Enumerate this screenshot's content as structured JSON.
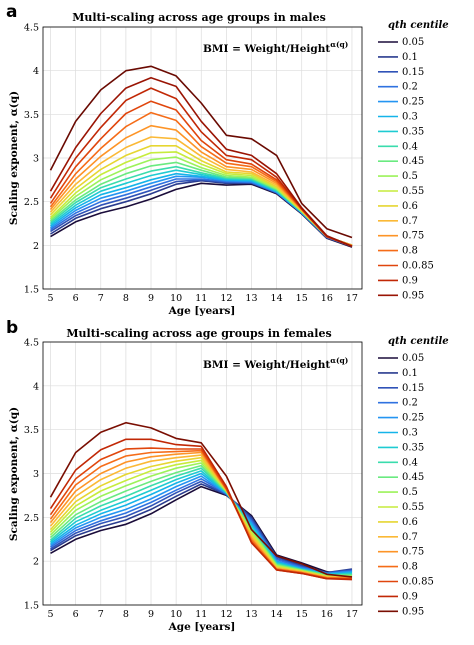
{
  "chart_data": [
    {
      "panel": "a",
      "type": "line",
      "title": "Multi-scaling across age groups in males",
      "annotation": "BMI = Weight/Height",
      "annotation_sup": "α(q)",
      "xlabel": "Age [years]",
      "ylabel": "Scaling exponent, α(q)",
      "xlim": [
        4.7,
        17.4
      ],
      "ylim": [
        1.5,
        4.5
      ],
      "x": [
        5,
        6,
        7,
        8,
        9,
        10,
        11,
        12,
        13,
        14,
        15,
        16,
        17
      ],
      "xticks": [
        "5",
        "6",
        "7",
        "8",
        "9",
        "10",
        "11",
        "12",
        "13",
        "14",
        "15",
        "16",
        "17"
      ],
      "yticks": [
        "1.5",
        "2",
        "2.5",
        "3",
        "3.5",
        "4",
        "4.5"
      ],
      "grid": true,
      "legend_position": "outside-right",
      "legend_title": "qth centile",
      "series": [
        {
          "name": "0.05",
          "values": [
            2.1,
            2.27,
            2.37,
            2.44,
            2.53,
            2.64,
            2.71,
            2.69,
            2.7,
            2.59,
            2.36,
            2.08,
            1.98
          ],
          "color": "#1a0c3a"
        },
        {
          "name": "0.1",
          "values": [
            2.13,
            2.31,
            2.42,
            2.5,
            2.59,
            2.7,
            2.74,
            2.71,
            2.71,
            2.6,
            2.37,
            2.09,
            1.99
          ],
          "color": "#2a3c8f"
        },
        {
          "name": "0.15",
          "values": [
            2.16,
            2.34,
            2.46,
            2.54,
            2.63,
            2.73,
            2.75,
            2.72,
            2.72,
            2.6,
            2.37,
            2.09,
            1.99
          ],
          "color": "#3053b8"
        },
        {
          "name": "0.2",
          "values": [
            2.18,
            2.37,
            2.5,
            2.58,
            2.67,
            2.76,
            2.76,
            2.73,
            2.72,
            2.61,
            2.37,
            2.09,
            1.99
          ],
          "color": "#2f72e0"
        },
        {
          "name": "0.25",
          "values": [
            2.2,
            2.4,
            2.54,
            2.62,
            2.71,
            2.79,
            2.78,
            2.74,
            2.73,
            2.61,
            2.37,
            2.1,
            2.0
          ],
          "color": "#2495f2"
        },
        {
          "name": "0.3",
          "values": [
            2.22,
            2.43,
            2.58,
            2.66,
            2.75,
            2.82,
            2.79,
            2.75,
            2.74,
            2.62,
            2.38,
            2.1,
            2.0
          ],
          "color": "#15b4e9"
        },
        {
          "name": "0.35",
          "values": [
            2.24,
            2.46,
            2.62,
            2.71,
            2.8,
            2.86,
            2.81,
            2.76,
            2.75,
            2.62,
            2.38,
            2.1,
            2.0
          ],
          "color": "#1ecbd2"
        },
        {
          "name": "0.4",
          "values": [
            2.26,
            2.49,
            2.66,
            2.76,
            2.85,
            2.9,
            2.83,
            2.77,
            2.76,
            2.63,
            2.38,
            2.1,
            2.0
          ],
          "color": "#3adcad"
        },
        {
          "name": "0.45",
          "values": [
            2.28,
            2.52,
            2.7,
            2.82,
            2.91,
            2.95,
            2.86,
            2.78,
            2.77,
            2.64,
            2.39,
            2.1,
            2.0
          ],
          "color": "#6aea80"
        },
        {
          "name": "0.5",
          "values": [
            2.3,
            2.56,
            2.75,
            2.88,
            2.98,
            3.01,
            2.89,
            2.8,
            2.78,
            2.65,
            2.39,
            2.1,
            2.0
          ],
          "color": "#9cf25a"
        },
        {
          "name": "0.55",
          "values": [
            2.32,
            2.6,
            2.81,
            2.95,
            3.06,
            3.07,
            2.93,
            2.82,
            2.8,
            2.66,
            2.39,
            2.1,
            2.0
          ],
          "color": "#c6ec3c"
        },
        {
          "name": "0.6",
          "values": [
            2.35,
            2.65,
            2.87,
            3.03,
            3.14,
            3.14,
            2.97,
            2.84,
            2.82,
            2.67,
            2.4,
            2.1,
            2.0
          ],
          "color": "#e6d632"
        },
        {
          "name": "0.7",
          "values": [
            2.38,
            2.7,
            2.94,
            3.12,
            3.24,
            3.22,
            3.02,
            2.87,
            2.84,
            2.69,
            2.4,
            2.1,
            2.0
          ],
          "color": "#fbb936"
        },
        {
          "name": "0.75",
          "values": [
            2.41,
            2.76,
            3.02,
            3.23,
            3.37,
            3.32,
            3.07,
            2.9,
            2.87,
            2.71,
            2.41,
            2.1,
            2.0
          ],
          "color": "#fd9427"
        },
        {
          "name": "0.8",
          "values": [
            2.44,
            2.82,
            3.11,
            3.36,
            3.52,
            3.43,
            3.13,
            2.94,
            2.9,
            2.73,
            2.41,
            2.1,
            1.99
          ],
          "color": "#f56c18"
        },
        {
          "name": "0.0.85",
          "values": [
            2.48,
            2.9,
            3.22,
            3.51,
            3.65,
            3.55,
            3.2,
            2.98,
            2.93,
            2.75,
            2.42,
            2.1,
            1.99
          ],
          "color": "#e0460d"
        },
        {
          "name": "0.9",
          "values": [
            2.54,
            3.0,
            3.35,
            3.66,
            3.8,
            3.68,
            3.3,
            3.03,
            2.98,
            2.78,
            2.42,
            2.1,
            1.99
          ],
          "color": "#c12806"
        },
        {
          "name": "0.95",
          "values": [
            2.62,
            3.12,
            3.51,
            3.8,
            3.92,
            3.82,
            3.42,
            3.1,
            3.03,
            2.82,
            2.43,
            2.11,
            1.99
          ],
          "color": "#9a1404"
        },
        {
          "name": "",
          "values": [
            2.86,
            3.42,
            3.78,
            4.0,
            4.05,
            3.94,
            3.63,
            3.26,
            3.22,
            3.03,
            2.48,
            2.19,
            2.09
          ],
          "color": "#6a0a02"
        }
      ]
    },
    {
      "panel": "b",
      "type": "line",
      "title": "Multi-scaling across age groups in females",
      "annotation": "BMI = Weight/Height",
      "annotation_sup": "α(q)",
      "xlabel": "Age [years]",
      "ylabel": "Scaling exponent, α(q)",
      "xlim": [
        4.7,
        17.4
      ],
      "ylim": [
        1.5,
        4.5
      ],
      "x": [
        5,
        6,
        7,
        8,
        9,
        10,
        11,
        12,
        13,
        14,
        15,
        16,
        17
      ],
      "xticks": [
        "5",
        "6",
        "7",
        "8",
        "9",
        "10",
        "11",
        "12",
        "13",
        "14",
        "15",
        "16",
        "17"
      ],
      "yticks": [
        "1.5",
        "2",
        "2.5",
        "3",
        "3.5",
        "4",
        "4.5"
      ],
      "grid": true,
      "legend_position": "outside-right",
      "legend_title": "qth centile",
      "series": [
        {
          "name": "0.05",
          "values": [
            2.09,
            2.25,
            2.35,
            2.42,
            2.54,
            2.7,
            2.85,
            2.75,
            2.52,
            2.07,
            1.98,
            1.88,
            1.84
          ],
          "color": "#1a0c3a"
        },
        {
          "name": "0.1",
          "values": [
            2.12,
            2.29,
            2.39,
            2.47,
            2.59,
            2.74,
            2.88,
            2.76,
            2.5,
            2.05,
            1.95,
            1.87,
            1.91
          ],
          "color": "#2a3c8f"
        },
        {
          "name": "0.15",
          "values": [
            2.14,
            2.32,
            2.43,
            2.51,
            2.63,
            2.78,
            2.91,
            2.76,
            2.48,
            2.03,
            1.94,
            1.87,
            1.9
          ],
          "color": "#3053b8"
        },
        {
          "name": "0.2",
          "values": [
            2.16,
            2.35,
            2.46,
            2.55,
            2.67,
            2.81,
            2.94,
            2.77,
            2.46,
            2.02,
            1.93,
            1.86,
            1.89
          ],
          "color": "#2f72e0"
        },
        {
          "name": "0.25",
          "values": [
            2.18,
            2.38,
            2.5,
            2.59,
            2.71,
            2.85,
            2.97,
            2.77,
            2.44,
            2.0,
            1.92,
            1.86,
            1.88
          ],
          "color": "#2495f2"
        },
        {
          "name": "0.3",
          "values": [
            2.2,
            2.41,
            2.54,
            2.64,
            2.76,
            2.89,
            3.0,
            2.78,
            2.42,
            1.99,
            1.91,
            1.85,
            1.87
          ],
          "color": "#15b4e9"
        },
        {
          "name": "0.35",
          "values": [
            2.22,
            2.45,
            2.58,
            2.69,
            2.81,
            2.93,
            3.03,
            2.78,
            2.4,
            1.98,
            1.91,
            1.85,
            1.86
          ],
          "color": "#1ecbd2"
        },
        {
          "name": "0.4",
          "values": [
            2.24,
            2.49,
            2.63,
            2.74,
            2.86,
            2.97,
            3.06,
            2.79,
            2.38,
            1.97,
            1.9,
            1.84,
            1.85
          ],
          "color": "#3adcad"
        },
        {
          "name": "0.45",
          "values": [
            2.27,
            2.53,
            2.68,
            2.8,
            2.91,
            3.01,
            3.09,
            2.79,
            2.36,
            1.96,
            1.9,
            1.84,
            1.84
          ],
          "color": "#6aea80"
        },
        {
          "name": "0.5",
          "values": [
            2.3,
            2.58,
            2.74,
            2.86,
            2.97,
            3.06,
            3.12,
            2.8,
            2.34,
            1.95,
            1.89,
            1.83,
            1.83
          ],
          "color": "#9cf25a"
        },
        {
          "name": "0.55",
          "values": [
            2.33,
            2.63,
            2.8,
            2.92,
            3.03,
            3.1,
            3.15,
            2.8,
            2.32,
            1.94,
            1.89,
            1.83,
            1.82
          ],
          "color": "#c6ec3c"
        },
        {
          "name": "0.6",
          "values": [
            2.36,
            2.68,
            2.86,
            2.99,
            3.08,
            3.14,
            3.18,
            2.81,
            2.3,
            1.93,
            1.88,
            1.82,
            1.82
          ],
          "color": "#e6d632"
        },
        {
          "name": "0.7",
          "values": [
            2.4,
            2.74,
            2.93,
            3.06,
            3.14,
            3.18,
            3.21,
            2.81,
            2.28,
            1.92,
            1.88,
            1.82,
            1.81
          ],
          "color": "#fbb936"
        },
        {
          "name": "0.75",
          "values": [
            2.44,
            2.8,
            3.0,
            3.13,
            3.19,
            3.22,
            3.24,
            2.82,
            2.26,
            1.91,
            1.87,
            1.81,
            1.81
          ],
          "color": "#fd9427"
        },
        {
          "name": "0.8",
          "values": [
            2.48,
            2.87,
            3.08,
            3.2,
            3.24,
            3.25,
            3.26,
            2.82,
            2.24,
            1.91,
            1.87,
            1.81,
            1.8
          ],
          "color": "#f56c18"
        },
        {
          "name": "0.0.85",
          "values": [
            2.53,
            2.94,
            3.16,
            3.28,
            3.29,
            3.28,
            3.28,
            2.83,
            2.22,
            1.9,
            1.86,
            1.8,
            1.8
          ],
          "color": "#e0460d"
        },
        {
          "name": "0.9",
          "values": [
            2.6,
            3.04,
            3.27,
            3.39,
            3.39,
            3.33,
            3.31,
            2.85,
            2.21,
            1.9,
            1.86,
            1.8,
            1.79
          ],
          "color": "#c12806"
        },
        {
          "name": "0.95",
          "values": [
            2.73,
            3.24,
            3.47,
            3.58,
            3.52,
            3.4,
            3.35,
            2.97,
            2.36,
            2.06,
            1.97,
            1.85,
            1.82
          ],
          "color": "#7a0e02"
        }
      ]
    }
  ]
}
